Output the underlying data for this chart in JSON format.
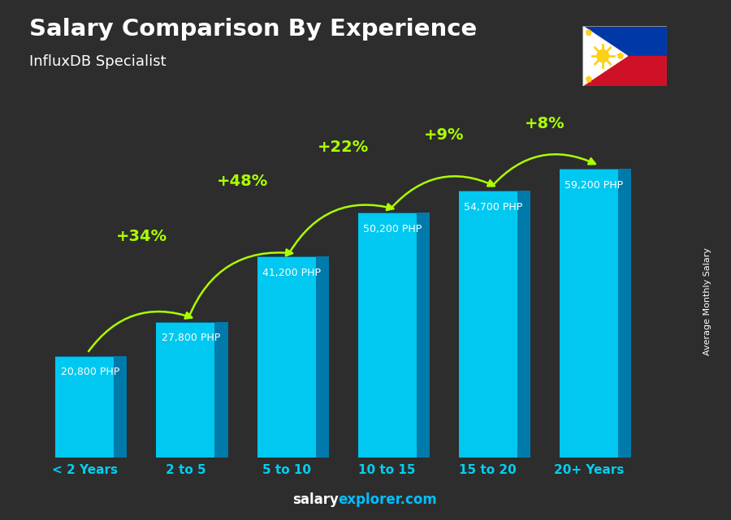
{
  "title": "Salary Comparison By Experience",
  "subtitle": "InfluxDB Specialist",
  "ylabel": "Average Monthly Salary",
  "categories": [
    "< 2 Years",
    "2 to 5",
    "5 to 10",
    "10 to 15",
    "15 to 20",
    "20+ Years"
  ],
  "values": [
    20800,
    27800,
    41200,
    50200,
    54700,
    59200
  ],
  "value_labels": [
    "20,800 PHP",
    "27,800 PHP",
    "41,200 PHP",
    "50,200 PHP",
    "54,700 PHP",
    "59,200 PHP"
  ],
  "pct_changes": [
    null,
    "+34%",
    "+48%",
    "+22%",
    "+9%",
    "+8%"
  ],
  "bar_face": "#00c8f0",
  "bar_side": "#007aaa",
  "bar_top": "#55ddff",
  "pct_color": "#aaff00",
  "xlabel_color": "#00d0f0",
  "text_white": "#ffffff",
  "bg_dark": "#2a2a2a",
  "footer_blue": "#00bfff"
}
